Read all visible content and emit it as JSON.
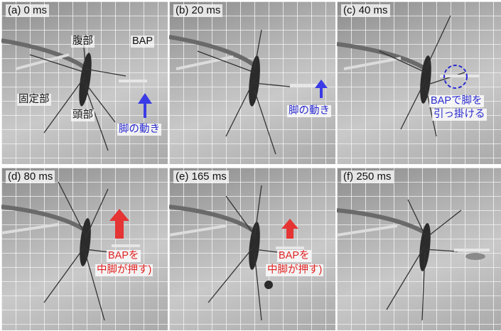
{
  "panels": [
    {
      "label": "(a) 0 ms",
      "annotations": {
        "abdomen": "腹部",
        "bap": "BAP",
        "fixture": "固定部",
        "head": "頭部",
        "leg_motion": "脚の動き"
      }
    },
    {
      "label": "(b) 20 ms",
      "annotations": {
        "leg_motion": "脚の動き"
      }
    },
    {
      "label": "(c) 40 ms",
      "annotations": {
        "hook_line1": "BAPで脚を",
        "hook_line2": "引っ掛ける"
      }
    },
    {
      "label": "(d) 80 ms",
      "annotations": {
        "push_line1": "BAPを",
        "push_line2": "中脚が押す)"
      }
    },
    {
      "label": "(e) 165 ms",
      "annotations": {
        "push_line1": "BAPを",
        "push_line2": "中脚が押す)"
      }
    },
    {
      "label": "(f) 250 ms",
      "annotations": {}
    }
  ],
  "colors": {
    "blue_arrow": "#3a3ae6",
    "red_arrow": "#e53434",
    "blue_text": "#2a2acf",
    "red_text": "#e02323"
  }
}
